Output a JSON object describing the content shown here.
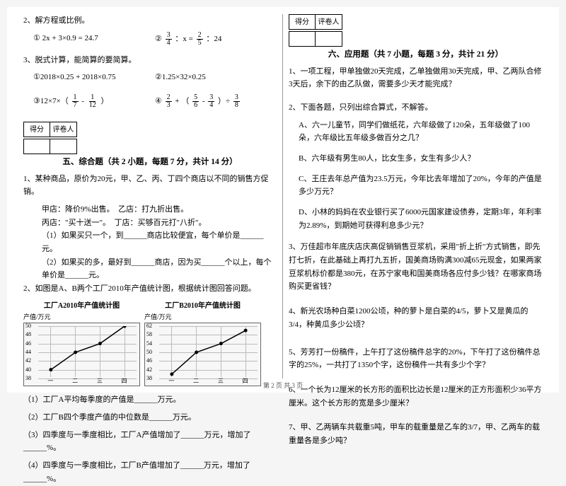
{
  "left": {
    "q2": "2、解方程或比例。",
    "q2_1": "① 2x + 3×0.9 = 24.7",
    "q2_2_pre": "②",
    "q2_2_a_n": "3",
    "q2_2_a_d": "4",
    "q2_2_mid": "：x =",
    "q2_2_b_n": "2",
    "q2_2_b_d": "5",
    "q2_2_post": "：24",
    "q3": "3、脱式计算，能简算的要简算。",
    "q3_1": "①2018×0.25 + 2018×0.75",
    "q3_2": "②1.25×32×0.25",
    "q3_3_pre": "③12×7×（",
    "q3_3_a_n": "1",
    "q3_3_a_d": "7",
    "q3_3_mid": "-",
    "q3_3_b_n": "1",
    "q3_3_b_d": "12",
    "q3_3_post": "）",
    "q3_4_pre": "④",
    "q3_4_a_n": "2",
    "q3_4_a_d": "3",
    "q3_4_mid1": " + （",
    "q3_4_b_n": "5",
    "q3_4_b_d": "6",
    "q3_4_mid2": " - ",
    "q3_4_c_n": "3",
    "q3_4_c_d": "4",
    "q3_4_mid3": "）÷",
    "q3_4_d_n": "3",
    "q3_4_d_d": "8",
    "score_a": "得分",
    "score_b": "评卷人",
    "sec5": "五、综合题（共 2 小题，每题 7 分，共计 14 分）",
    "s5_1": "1、某种商品，原价为20元，甲、乙、丙、丁四个商店以不同的销售方促销。",
    "s5_1a": "甲店：降价9%出售。　乙店：打九折出售。",
    "s5_1b": "丙店：\"买十送一\"。　丁店：买够百元打\"八折\"。",
    "s5_1c": "（1）如果买只一个，到______商店比较便宜，每个单价是______元。",
    "s5_1d": "（2）如果买的多，最好到______商店，因为买______个以上，每个单价是______元。",
    "s5_2": "2、如图是A、B两个工厂2010年产值统计图，根据统计图回答问题。",
    "chartA_title": "工厂A2010年产值统计图",
    "chartB_title": "工厂B2010年产值统计图",
    "chart_ylabel": "产值/万元",
    "chart_xunit": "季度",
    "xticks": [
      "一",
      "二",
      "三",
      "四"
    ],
    "chartA_y": [
      38,
      40,
      42,
      44,
      46,
      48,
      50
    ],
    "chartA_pts": [
      [
        0,
        40
      ],
      [
        1,
        44
      ],
      [
        2,
        46
      ],
      [
        3,
        50
      ]
    ],
    "chartB_y": [
      38,
      42,
      46,
      50,
      54,
      58,
      62
    ],
    "chartB_pts": [
      [
        0,
        40
      ],
      [
        1,
        50
      ],
      [
        2,
        54
      ],
      [
        3,
        60
      ]
    ],
    "s5_2a": "（1）工厂A平均每季度的产值是______万元。",
    "s5_2b": "（2）工厂B四个季度产值的中位数是______万元。",
    "s5_2c": "（3）四季度与一季度相比，工厂A产值增加了______万元，增加了______%。",
    "s5_2d": "（4）四季度与一季度相比，工厂B产值增加了______万元，增加了______%。"
  },
  "right": {
    "score_a": "得分",
    "score_b": "评卷人",
    "sec6": "六、应用题（共 7 小题，每题 3 分，共计 21 分）",
    "r1": "1、一项工程，甲单独做20天完成，乙单独做用30天完成，甲、乙两队合修3天后，余下的由乙队做，需要多少天才能完成？",
    "r2": "2、下面各题，只列出综合算式，不解答。",
    "r2a": "A、六一儿童节，同学们做纸花，六年级做了120朵，五年级做了100朵，六年级比五年级多做百分之几？",
    "r2b": "B、六年级有男生80人，比女生多，女生有多少人？",
    "r2c": "C、王庄去年总产值为23.5万元，今年比去年增加了20%，今年的产值是多少万元？",
    "r2d": "D、小林的妈妈在农业银行买了6000元国家建设债券，定期3年，年利率为2.89%，到期她可获得利息多少元？",
    "r3": "3、万佳超市年底庆店庆高促销销售豆浆机，采用\"折上折\"方式销售，即先打七折，在此基础上再打九五折，国美商场购满300减65元现金，如果两家豆浆机标价都是380元，在苏宁家电和国美商场各应付多少钱？在哪家商场购买更省钱？",
    "r4": "4、新光农场种白菜1200公顷，种的萝卜是白菜的4/5，萝卜又是黄瓜的3/4，种黄瓜多少公顷？",
    "r5": "5、芳芳打一份稿件，上午打了这份稿件总字的20%，下午打了这份稿件总字的25%，一共打了1350个字，这份稿件一共有多少个字？",
    "r6": "6、一个长为12厘米的长方形的面积比边长是12厘米的正方形面积少36平方厘米。这个长方形的宽是多少厘米？",
    "r7": "7、甲、乙两辆车共载重5吨，甲车的载重量是乙车的3/7，甲、乙两车的载重量各是多少吨？"
  },
  "footer": "第 2 页  共 3 页",
  "colors": {
    "grid": "#bbbbbb",
    "line": "#000000",
    "bg": "#f7f7f7"
  }
}
